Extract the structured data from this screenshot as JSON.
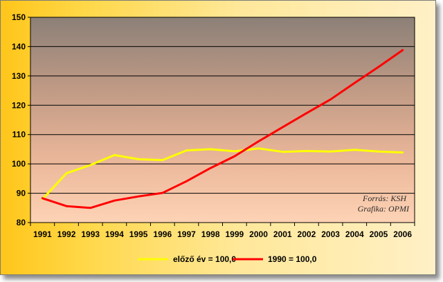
{
  "chart_data": {
    "type": "line",
    "x": [
      "1991",
      "1992",
      "1993",
      "1994",
      "1995",
      "1996",
      "1997",
      "1998",
      "1999",
      "2000",
      "2001",
      "2002",
      "2003",
      "2004",
      "2005",
      "2006"
    ],
    "series": [
      {
        "name": "előző év = 100,0",
        "color": "#ffff00",
        "values": [
          88.0,
          96.8,
          99.6,
          103.0,
          101.6,
          101.3,
          104.6,
          105.0,
          104.3,
          105.3,
          104.1,
          104.4,
          104.2,
          104.8,
          104.2,
          103.9
        ]
      },
      {
        "name": "1990 = 100,0",
        "color": "#ff0000",
        "values": [
          88.3,
          85.6,
          85.0,
          87.5,
          88.9,
          90.1,
          94.1,
          98.6,
          102.6,
          107.7,
          112.5,
          117.3,
          122.0,
          127.6,
          133.1,
          138.8
        ]
      }
    ],
    "yticks": [
      "80",
      "90",
      "100",
      "110",
      "120",
      "130",
      "140",
      "150"
    ],
    "ylim": [
      80,
      150
    ],
    "grid": true,
    "legend": "bottom",
    "annotations": [
      "Forrás: KSH",
      "Grafika: OPMI"
    ]
  }
}
